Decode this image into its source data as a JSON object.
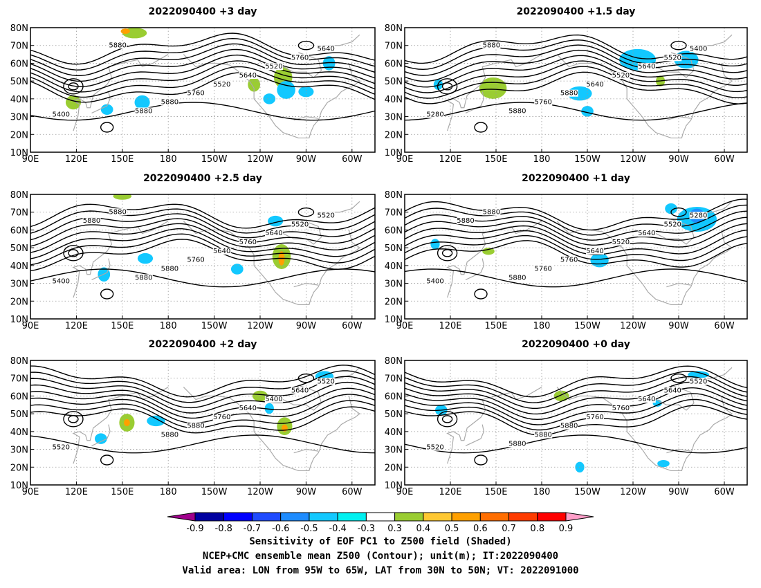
{
  "chart_data": {
    "type": "heatmap",
    "layout": "3x2 map panels",
    "panels": [
      {
        "title": "2022090400 +3 day",
        "contour_labels": [
          "5400",
          "5640",
          "5760",
          "5520",
          "5640",
          "5520",
          "5760",
          "5880",
          "5880",
          "5880"
        ]
      },
      {
        "title": "2022090400 +1.5 day",
        "contour_labels": [
          "5280",
          "5400",
          "5520",
          "5640",
          "5520",
          "5640",
          "5880",
          "5760",
          "5880",
          "5880"
        ]
      },
      {
        "title": "2022090400 +2.5 day",
        "contour_labels": [
          "5400",
          "5520",
          "5520",
          "5640",
          "5760",
          "5640",
          "5760",
          "5880",
          "5880",
          "5880",
          "5880"
        ]
      },
      {
        "title": "2022090400 +1 day",
        "contour_labels": [
          "5400",
          "5280",
          "5520",
          "5640",
          "5520",
          "5640",
          "5760",
          "5760",
          "5880",
          "5880",
          "5880"
        ]
      },
      {
        "title": "2022090400 +2 day",
        "contour_labels": [
          "5520",
          "5520",
          "5640",
          "5400",
          "5640",
          "5760",
          "5880",
          "5880"
        ]
      },
      {
        "title": "2022090400 +0 day",
        "contour_labels": [
          "5520",
          "5520",
          "5640",
          "5640",
          "5760",
          "5760",
          "5880",
          "5880",
          "5880"
        ]
      }
    ],
    "x_ticks": [
      "90E",
      "120E",
      "150E",
      "180",
      "150W",
      "120W",
      "90W",
      "60W"
    ],
    "y_ticks": [
      "10N",
      "20N",
      "30N",
      "40N",
      "50N",
      "60N",
      "70N",
      "80N"
    ],
    "colorbar": {
      "ticks": [
        "-0.9",
        "-0.8",
        "-0.7",
        "-0.6",
        "-0.5",
        "-0.4",
        "-0.3",
        "0.3",
        "0.4",
        "0.5",
        "0.6",
        "0.7",
        "0.8",
        "0.9"
      ],
      "colors": [
        "#a0008c",
        "#0000a0",
        "#0000ff",
        "#1f4bff",
        "#1e8cff",
        "#12c8ff",
        "#00f0f0",
        "#ffffff",
        "#9acd32",
        "#ffc832",
        "#ffa000",
        "#ff6e00",
        "#ff3c00",
        "#ff0000",
        "#ff9ec8"
      ]
    },
    "grid": true
  },
  "caption": {
    "line1": "Sensitivity of EOF PC1 to Z500 field (Shaded)",
    "line2": "NCEP+CMC ensemble mean Z500 (Contour); unit(m); IT:2022090400",
    "line3": "Valid area: LON from 95W to 65W, LAT from 30N to 50N; VT: 2022091000"
  }
}
